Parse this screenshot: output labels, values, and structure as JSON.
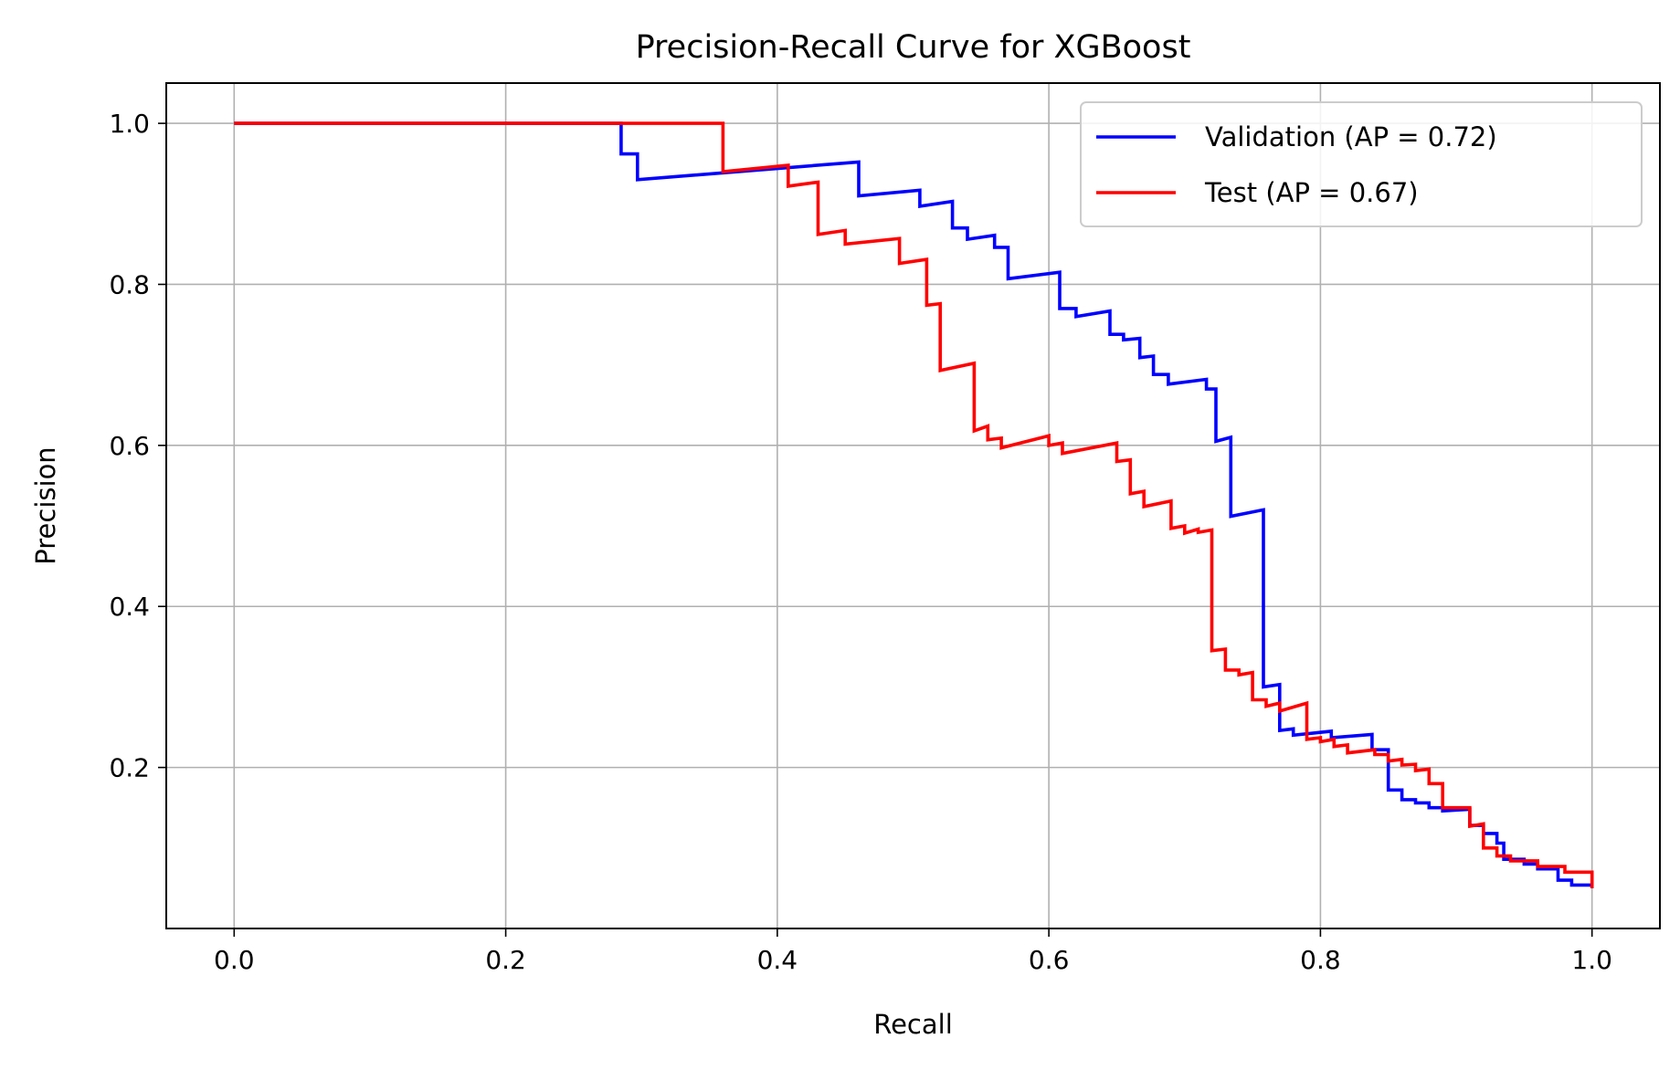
{
  "chart_data": {
    "type": "line",
    "title": "Precision-Recall Curve for XGBoost",
    "xlabel": "Recall",
    "ylabel": "Precision",
    "xlim": [
      -0.05,
      1.05
    ],
    "ylim": [
      0.0,
      1.05
    ],
    "xticks": [
      0.0,
      0.2,
      0.4,
      0.6,
      0.8,
      1.0
    ],
    "xtick_labels": [
      "0.0",
      "0.2",
      "0.4",
      "0.6",
      "0.8",
      "1.0"
    ],
    "yticks": [
      0.2,
      0.4,
      0.6,
      0.8,
      1.0
    ],
    "ytick_labels": [
      "0.2",
      "0.4",
      "0.6",
      "0.8",
      "1.0"
    ],
    "grid": true,
    "legend_position": "top-right",
    "series": [
      {
        "name": "Validation (AP = 0.72)",
        "color": "#0000ff",
        "points": [
          [
            0.0,
            1.0
          ],
          [
            0.285,
            1.0
          ],
          [
            0.285,
            0.962
          ],
          [
            0.297,
            0.962
          ],
          [
            0.297,
            0.93
          ],
          [
            0.46,
            0.952
          ],
          [
            0.46,
            0.91
          ],
          [
            0.505,
            0.917
          ],
          [
            0.505,
            0.897
          ],
          [
            0.529,
            0.903
          ],
          [
            0.529,
            0.87
          ],
          [
            0.54,
            0.87
          ],
          [
            0.54,
            0.856
          ],
          [
            0.56,
            0.861
          ],
          [
            0.56,
            0.846
          ],
          [
            0.57,
            0.846
          ],
          [
            0.57,
            0.807
          ],
          [
            0.608,
            0.815
          ],
          [
            0.608,
            0.77
          ],
          [
            0.62,
            0.77
          ],
          [
            0.62,
            0.76
          ],
          [
            0.645,
            0.767
          ],
          [
            0.645,
            0.738
          ],
          [
            0.655,
            0.738
          ],
          [
            0.655,
            0.731
          ],
          [
            0.667,
            0.733
          ],
          [
            0.667,
            0.709
          ],
          [
            0.677,
            0.711
          ],
          [
            0.677,
            0.688
          ],
          [
            0.688,
            0.688
          ],
          [
            0.688,
            0.676
          ],
          [
            0.716,
            0.682
          ],
          [
            0.716,
            0.67
          ],
          [
            0.723,
            0.67
          ],
          [
            0.723,
            0.605
          ],
          [
            0.734,
            0.61
          ],
          [
            0.734,
            0.512
          ],
          [
            0.758,
            0.52
          ],
          [
            0.758,
            0.3
          ],
          [
            0.77,
            0.303
          ],
          [
            0.77,
            0.246
          ],
          [
            0.78,
            0.248
          ],
          [
            0.78,
            0.24
          ],
          [
            0.808,
            0.245
          ],
          [
            0.808,
            0.237
          ],
          [
            0.838,
            0.241
          ],
          [
            0.838,
            0.222
          ],
          [
            0.85,
            0.222
          ],
          [
            0.85,
            0.172
          ],
          [
            0.86,
            0.172
          ],
          [
            0.86,
            0.16
          ],
          [
            0.87,
            0.16
          ],
          [
            0.87,
            0.156
          ],
          [
            0.88,
            0.156
          ],
          [
            0.88,
            0.15
          ],
          [
            0.89,
            0.15
          ],
          [
            0.89,
            0.146
          ],
          [
            0.91,
            0.148
          ],
          [
            0.91,
            0.128
          ],
          [
            0.92,
            0.128
          ],
          [
            0.92,
            0.118
          ],
          [
            0.93,
            0.118
          ],
          [
            0.93,
            0.106
          ],
          [
            0.935,
            0.106
          ],
          [
            0.935,
            0.086
          ],
          [
            0.95,
            0.086
          ],
          [
            0.95,
            0.08
          ],
          [
            0.96,
            0.08
          ],
          [
            0.96,
            0.074
          ],
          [
            0.975,
            0.074
          ],
          [
            0.975,
            0.06
          ],
          [
            0.985,
            0.06
          ],
          [
            0.985,
            0.054
          ],
          [
            1.0,
            0.054
          ],
          [
            1.0,
            0.05
          ]
        ]
      },
      {
        "name": "Test (AP = 0.67)",
        "color": "#ff0000",
        "points": [
          [
            0.0,
            1.0
          ],
          [
            0.36,
            1.0
          ],
          [
            0.36,
            0.94
          ],
          [
            0.408,
            0.948
          ],
          [
            0.408,
            0.922
          ],
          [
            0.43,
            0.927
          ],
          [
            0.43,
            0.862
          ],
          [
            0.45,
            0.867
          ],
          [
            0.45,
            0.85
          ],
          [
            0.49,
            0.857
          ],
          [
            0.49,
            0.826
          ],
          [
            0.51,
            0.831
          ],
          [
            0.51,
            0.774
          ],
          [
            0.52,
            0.776
          ],
          [
            0.52,
            0.693
          ],
          [
            0.545,
            0.702
          ],
          [
            0.545,
            0.618
          ],
          [
            0.555,
            0.624
          ],
          [
            0.555,
            0.607
          ],
          [
            0.565,
            0.609
          ],
          [
            0.565,
            0.597
          ],
          [
            0.6,
            0.612
          ],
          [
            0.6,
            0.6
          ],
          [
            0.61,
            0.603
          ],
          [
            0.61,
            0.59
          ],
          [
            0.65,
            0.603
          ],
          [
            0.65,
            0.58
          ],
          [
            0.66,
            0.582
          ],
          [
            0.66,
            0.54
          ],
          [
            0.67,
            0.543
          ],
          [
            0.67,
            0.524
          ],
          [
            0.69,
            0.531
          ],
          [
            0.69,
            0.497
          ],
          [
            0.7,
            0.5
          ],
          [
            0.7,
            0.491
          ],
          [
            0.71,
            0.496
          ],
          [
            0.71,
            0.492
          ],
          [
            0.72,
            0.495
          ],
          [
            0.72,
            0.345
          ],
          [
            0.73,
            0.347
          ],
          [
            0.73,
            0.321
          ],
          [
            0.74,
            0.321
          ],
          [
            0.74,
            0.315
          ],
          [
            0.75,
            0.318
          ],
          [
            0.75,
            0.284
          ],
          [
            0.76,
            0.284
          ],
          [
            0.76,
            0.276
          ],
          [
            0.77,
            0.28
          ],
          [
            0.77,
            0.27
          ],
          [
            0.79,
            0.28
          ],
          [
            0.79,
            0.235
          ],
          [
            0.8,
            0.237
          ],
          [
            0.8,
            0.232
          ],
          [
            0.81,
            0.235
          ],
          [
            0.81,
            0.226
          ],
          [
            0.82,
            0.228
          ],
          [
            0.82,
            0.218
          ],
          [
            0.84,
            0.222
          ],
          [
            0.84,
            0.216
          ],
          [
            0.85,
            0.216
          ],
          [
            0.85,
            0.208
          ],
          [
            0.86,
            0.21
          ],
          [
            0.86,
            0.203
          ],
          [
            0.87,
            0.204
          ],
          [
            0.87,
            0.196
          ],
          [
            0.88,
            0.198
          ],
          [
            0.88,
            0.18
          ],
          [
            0.89,
            0.18
          ],
          [
            0.89,
            0.15
          ],
          [
            0.91,
            0.15
          ],
          [
            0.91,
            0.127
          ],
          [
            0.92,
            0.13
          ],
          [
            0.92,
            0.1
          ],
          [
            0.93,
            0.1
          ],
          [
            0.93,
            0.09
          ],
          [
            0.94,
            0.09
          ],
          [
            0.94,
            0.084
          ],
          [
            0.96,
            0.084
          ],
          [
            0.96,
            0.077
          ],
          [
            0.98,
            0.077
          ],
          [
            0.98,
            0.07
          ],
          [
            1.0,
            0.07
          ],
          [
            1.0,
            0.05
          ]
        ]
      }
    ]
  }
}
